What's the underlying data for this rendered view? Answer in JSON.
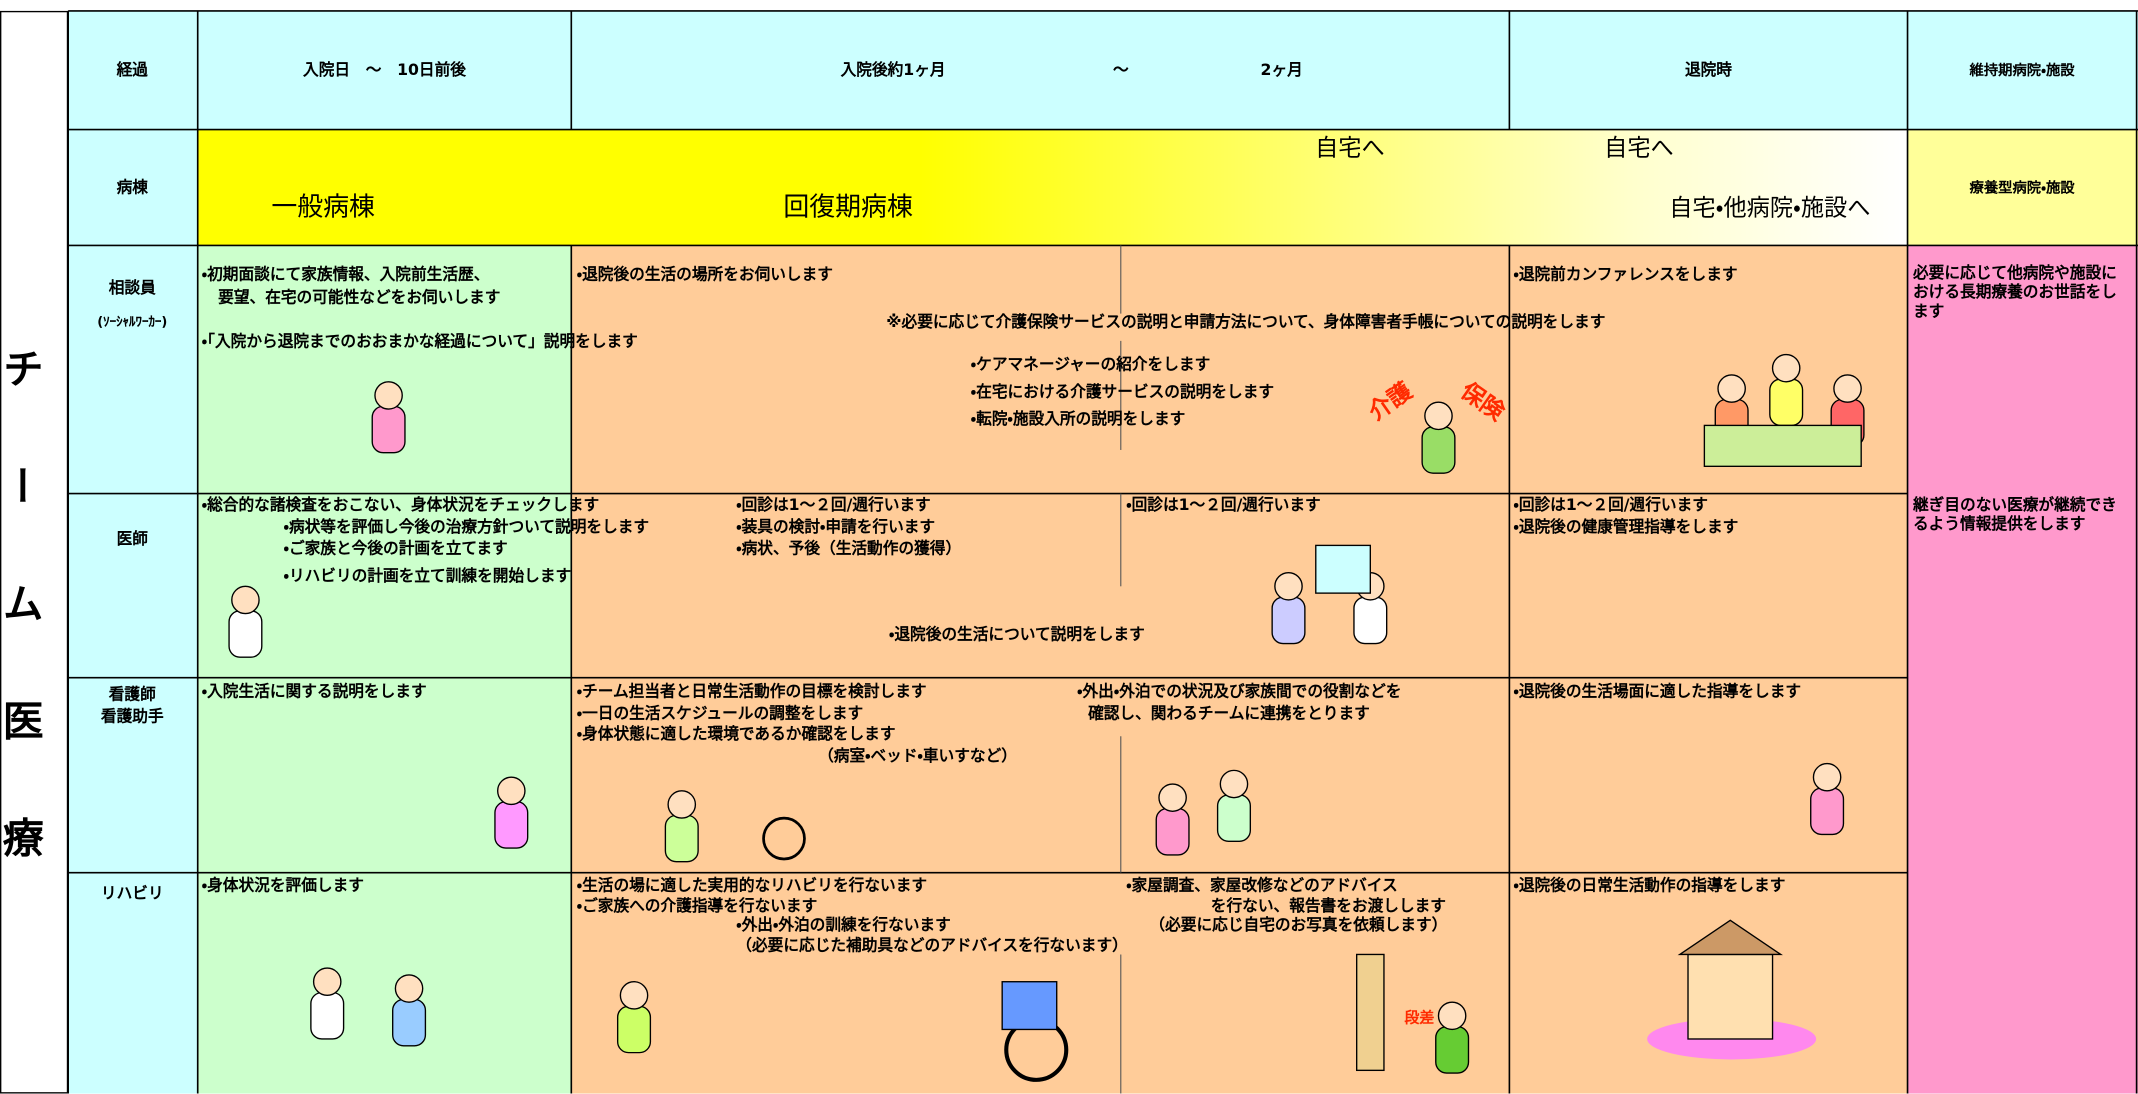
{
  "side_title": "チーム医療",
  "header": {
    "label": "経過",
    "admission": "入院日　～　10日前後",
    "recovery_start": "入院後約1ヶ月",
    "recovery_tilde": "～",
    "recovery_end": "2ヶ月",
    "discharge": "退院時",
    "maintenance": "維持期病院・施設"
  },
  "ward": {
    "label": "病棟",
    "general": "一般病棟",
    "recovery": "回復期病棟",
    "home_1": "自宅へ",
    "home_2": "自宅へ",
    "destinations": "自宅・他病院・施設へ",
    "long_term": "療養型病院・施設"
  },
  "rows": [
    {
      "label": [
        "相談員",
        "(ｿｰｼｬﾙﾜｰｶｰ)"
      ],
      "notes": [
        "・初期面談にて家族情報、入院前生活歴、",
        "要望、在宅の可能性などをお伺いします",
        "・「入院から退院までのおおまかな経過について」説明をします",
        "・退院後の生活の場所をお伺いします",
        "※必要に応じて介護保険サービスの説明と申請方法について、身体障害者手帳についての説明をします",
        "・ケアマネージャーの紹介をします",
        "・在宅における介護サービスの説明をします",
        "・転院・施設入所の説明をします",
        "・退院前カンファレンスをします"
      ],
      "captions": [
        "介護",
        "保険"
      ],
      "maintenance": "必要に応じて他病院や施設における長期療養のお世話をします"
    },
    {
      "label": [
        "医師"
      ],
      "notes": [
        "・総合的な諸検査をおこない、身体状況をチェックします",
        "・病状等を評価し今後の治療方針ついて説明をします",
        "・ご家族と今後の計画を立てます",
        "・リハビリの計画を立て訓練を開始します",
        "・回診は1～２回/週行います",
        "・装具の検討・申請を行います",
        "・病状、予後（生活動作の獲得）",
        "・回診は1～２回/週行います",
        "・退院後の生活について説明をします",
        "・回診は1～２回/週行います",
        "・退院後の健康管理指導をします"
      ],
      "maintenance": "継ぎ目のない医療が継続できるよう情報提供をします"
    },
    {
      "label": [
        "看護師",
        "看護助手"
      ],
      "notes": [
        "・入院生活に関する説明をします",
        "・チーム担当者と日常生活動作の目標を検討します",
        "・一日の生活スケジュールの調整をします",
        "・身体状態に適した環境であるか確認をします",
        "（病室・ベッド・車いすなど）",
        "・外出・外泊での状況及び家族間での役割などを",
        "確認し、関わるチームに連携をとります",
        "・退院後の生活場面に適した指導をします"
      ]
    },
    {
      "label": [
        "リハビリ"
      ],
      "notes": [
        "・身体状況を評価します",
        "・生活の場に適した実用的なリハビリを行ないます",
        "・ご家族への介護指導を行ないます",
        "・外出・外泊の訓練を行ないます",
        "（必要に応じた補助具などのアドバイスを行ないます）",
        "・家屋調査、家屋改修などのアドバイス",
        "を行ない、報告書をお渡しします",
        "（必要に応じ自宅のお写真を依頼します）",
        "・退院後の日常生活動作の指導をします"
      ],
      "captions": [
        "段差"
      ]
    }
  ]
}
